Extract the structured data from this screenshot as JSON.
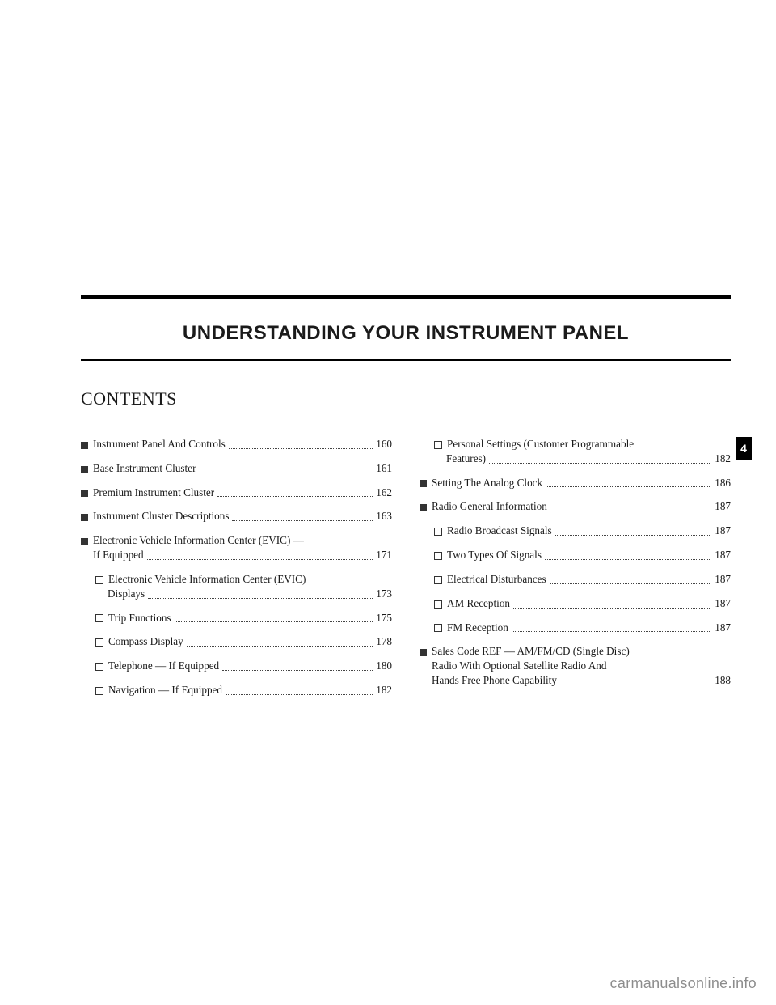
{
  "chapterTitle": "UNDERSTANDING YOUR INSTRUMENT PANEL",
  "contentsHeading": "CONTENTS",
  "sideTab": "4",
  "watermark": "carmanualsonline.info",
  "leftCol": [
    {
      "level": 1,
      "text": "Instrument Panel And Controls",
      "page": "160"
    },
    {
      "level": 1,
      "text": "Base Instrument Cluster",
      "page": "161"
    },
    {
      "level": 1,
      "text": "Premium Instrument Cluster",
      "page": "162"
    },
    {
      "level": 1,
      "text": "Instrument Cluster Descriptions",
      "page": "163"
    },
    {
      "level": 1,
      "text": "Electronic Vehicle Information Center (EVIC) —",
      "text2": "If Equipped",
      "page": "171",
      "multiline": true
    },
    {
      "level": 2,
      "text": "Electronic Vehicle Information Center (EVIC)",
      "text2": "Displays",
      "page": "173",
      "multiline": true
    },
    {
      "level": 2,
      "text": "Trip Functions",
      "page": "175"
    },
    {
      "level": 2,
      "text": "Compass Display",
      "page": "178"
    },
    {
      "level": 2,
      "text": "Telephone — If Equipped",
      "page": "180"
    },
    {
      "level": 2,
      "text": "Navigation — If Equipped",
      "page": "182"
    }
  ],
  "rightCol": [
    {
      "level": 2,
      "text": "Personal Settings (Customer Programmable",
      "text2": "Features)",
      "page": "182",
      "multiline": true
    },
    {
      "level": 1,
      "text": "Setting The Analog Clock",
      "page": "186"
    },
    {
      "level": 1,
      "text": "Radio General Information",
      "page": "187"
    },
    {
      "level": 2,
      "text": "Radio Broadcast Signals",
      "page": "187"
    },
    {
      "level": 2,
      "text": "Two Types Of Signals",
      "page": "187"
    },
    {
      "level": 2,
      "text": "Electrical Disturbances",
      "page": "187"
    },
    {
      "level": 2,
      "text": "AM Reception",
      "page": "187"
    },
    {
      "level": 2,
      "text": "FM Reception",
      "page": "187"
    },
    {
      "level": 1,
      "text": "Sales Code REF — AM/FM/CD (Single Disc)",
      "text2": "Radio With Optional Satellite Radio And",
      "text3": "Hands Free Phone Capability",
      "page": "188",
      "multiline3": true
    }
  ]
}
